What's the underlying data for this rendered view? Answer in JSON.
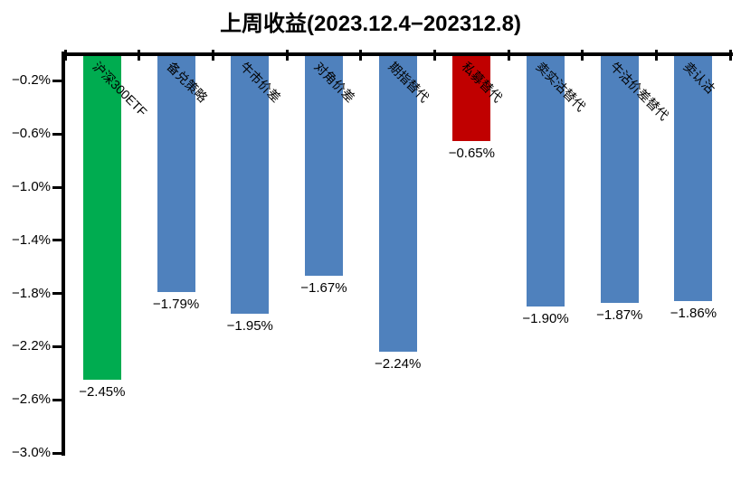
{
  "chart_data": {
    "type": "bar",
    "title": "上周收益(2023.12.4−202312.8)",
    "categories": [
      "沪深300ETF",
      "备兑策略",
      "牛市价差",
      "对角价差",
      "期指替代",
      "私募替代",
      "卖实沽替代",
      "牛沽价差替代",
      "卖认沽"
    ],
    "values": [
      -2.45,
      -1.79,
      -1.95,
      -1.67,
      -2.24,
      -0.65,
      -1.9,
      -1.87,
      -1.86
    ],
    "value_labels": [
      "−2.45%",
      "−1.79%",
      "−1.95%",
      "−1.67%",
      "−2.24%",
      "−0.65%",
      "−1.90%",
      "−1.87%",
      "−1.86%"
    ],
    "bar_colors": [
      "#00AC50",
      "#4F81BD",
      "#4F81BD",
      "#4F81BD",
      "#4F81BD",
      "#C00000",
      "#4F81BD",
      "#4F81BD",
      "#4F81BD"
    ],
    "xlabel": "",
    "ylabel": "",
    "ylim": [
      -3.0,
      0
    ],
    "ytick_values": [
      -0.2,
      -0.6,
      -1.0,
      -1.4,
      -1.8,
      -2.2,
      -2.6,
      -3.0
    ],
    "ytick_labels": [
      "−0.2%",
      "−0.6%",
      "−1.0%",
      "−1.4%",
      "−1.8%",
      "−2.2%",
      "−2.6%",
      "−3.0%"
    ],
    "grid": false,
    "legend": "none",
    "category_label_rotation_deg": 45,
    "colors": {
      "default_bar": "#4F81BD",
      "benchmark_bar": "#00AC50",
      "highlight_bar": "#C00000",
      "axis": "#000000",
      "background": "#FFFFFF"
    }
  }
}
